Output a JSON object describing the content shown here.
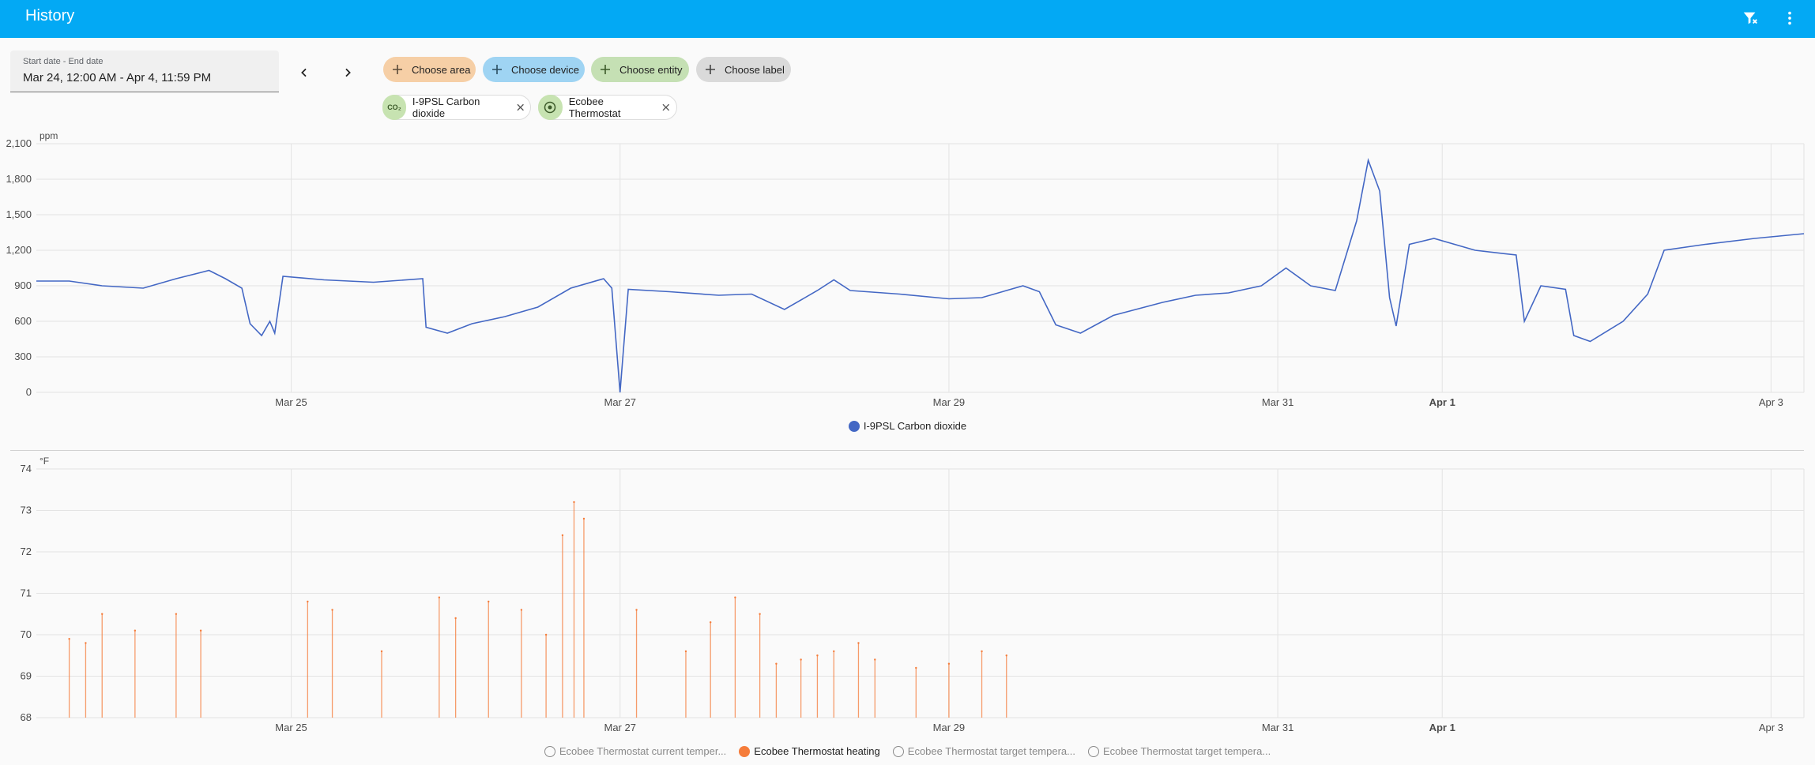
{
  "header": {
    "title": "History"
  },
  "date_range": {
    "label": "Start date - End date",
    "value": "Mar 24, 12:00 AM - Apr 4, 11:59 PM"
  },
  "filters": {
    "area": "Choose area",
    "device": "Choose device",
    "entity": "Choose entity",
    "label": "Choose label"
  },
  "selected": [
    {
      "icon": "CO₂",
      "name": "I-9PSL Carbon dioxide"
    },
    {
      "icon": "thermostat-icon",
      "name": "Ecobee Thermostat"
    }
  ],
  "colors": {
    "accent": "#03a9f4",
    "co2": "#4367c4",
    "heating": "#f57c3a"
  },
  "chart_data": [
    {
      "type": "line",
      "unit": "ppm",
      "ylim": [
        0,
        2100
      ],
      "yticks": [
        "2,100",
        "1,800",
        "1,500",
        "1,200",
        "900",
        "600",
        "300",
        "0"
      ],
      "xlim_days": [
        -0.55,
        10.2
      ],
      "xticks": [
        {
          "label": "Mar 25",
          "day": 1,
          "bold": false
        },
        {
          "label": "Mar 27",
          "day": 3,
          "bold": false
        },
        {
          "label": "Mar 29",
          "day": 5,
          "bold": false
        },
        {
          "label": "Mar 31",
          "day": 7,
          "bold": false
        },
        {
          "label": "Apr 1",
          "day": 8,
          "bold": true
        },
        {
          "label": "Apr 3",
          "day": 10,
          "bold": false
        }
      ],
      "legend": [
        "I-9PSL Carbon dioxide"
      ],
      "series": [
        {
          "name": "I-9PSL Carbon dioxide",
          "points": [
            [
              -0.55,
              940
            ],
            [
              -0.35,
              940
            ],
            [
              -0.15,
              900
            ],
            [
              0.1,
              880
            ],
            [
              0.3,
              960
            ],
            [
              0.5,
              1030
            ],
            [
              0.6,
              960
            ],
            [
              0.7,
              880
            ],
            [
              0.75,
              580
            ],
            [
              0.82,
              480
            ],
            [
              0.87,
              600
            ],
            [
              0.9,
              500
            ],
            [
              0.95,
              980
            ],
            [
              1.2,
              950
            ],
            [
              1.5,
              930
            ],
            [
              1.8,
              960
            ],
            [
              1.82,
              550
            ],
            [
              1.95,
              500
            ],
            [
              2.1,
              580
            ],
            [
              2.3,
              640
            ],
            [
              2.5,
              720
            ],
            [
              2.7,
              880
            ],
            [
              2.9,
              960
            ],
            [
              2.95,
              880
            ],
            [
              3.0,
              0
            ],
            [
              3.05,
              870
            ],
            [
              3.3,
              850
            ],
            [
              3.6,
              820
            ],
            [
              3.8,
              830
            ],
            [
              4.0,
              700
            ],
            [
              4.2,
              860
            ],
            [
              4.3,
              950
            ],
            [
              4.4,
              860
            ],
            [
              4.7,
              830
            ],
            [
              5.0,
              790
            ],
            [
              5.2,
              800
            ],
            [
              5.45,
              900
            ],
            [
              5.55,
              850
            ],
            [
              5.65,
              570
            ],
            [
              5.8,
              500
            ],
            [
              6.0,
              650
            ],
            [
              6.3,
              760
            ],
            [
              6.5,
              820
            ],
            [
              6.7,
              840
            ],
            [
              6.9,
              900
            ],
            [
              7.05,
              1050
            ],
            [
              7.2,
              900
            ],
            [
              7.35,
              860
            ],
            [
              7.48,
              1450
            ],
            [
              7.55,
              1960
            ],
            [
              7.62,
              1700
            ],
            [
              7.68,
              800
            ],
            [
              7.72,
              560
            ],
            [
              7.8,
              1250
            ],
            [
              7.95,
              1300
            ],
            [
              8.2,
              1200
            ],
            [
              8.45,
              1160
            ],
            [
              8.5,
              600
            ],
            [
              8.6,
              900
            ],
            [
              8.75,
              870
            ],
            [
              8.8,
              480
            ],
            [
              8.9,
              430
            ],
            [
              9.1,
              600
            ],
            [
              9.25,
              830
            ],
            [
              9.35,
              1200
            ],
            [
              9.6,
              1250
            ],
            [
              9.9,
              1300
            ],
            [
              10.2,
              1340
            ]
          ]
        }
      ]
    },
    {
      "type": "bar",
      "unit": "°F",
      "ylim": [
        68,
        74
      ],
      "yticks": [
        "74",
        "73",
        "72",
        "71",
        "70",
        "69",
        "68"
      ],
      "xlim_days": [
        -0.55,
        10.2
      ],
      "xticks": [
        {
          "label": "Mar 25",
          "day": 1,
          "bold": false
        },
        {
          "label": "Mar 27",
          "day": 3,
          "bold": false
        },
        {
          "label": "Mar 29",
          "day": 5,
          "bold": false
        },
        {
          "label": "Mar 31",
          "day": 7,
          "bold": false
        },
        {
          "label": "Apr 1",
          "day": 8,
          "bold": true
        },
        {
          "label": "Apr 3",
          "day": 10,
          "bold": false
        }
      ],
      "legend": [
        {
          "name": "Ecobee Thermostat current temper...",
          "enabled": false
        },
        {
          "name": "Ecobee Thermostat heating",
          "enabled": true
        },
        {
          "name": "Ecobee Thermostat target tempera...",
          "enabled": false
        },
        {
          "name": "Ecobee Thermostat target tempera...",
          "enabled": false
        }
      ],
      "series": [
        {
          "name": "Ecobee Thermostat heating",
          "points": [
            [
              -0.35,
              69.9
            ],
            [
              -0.25,
              69.8
            ],
            [
              -0.15,
              70.5
            ],
            [
              0.05,
              70.1
            ],
            [
              0.3,
              70.5
            ],
            [
              0.45,
              70.1
            ],
            [
              1.1,
              70.8
            ],
            [
              1.25,
              70.6
            ],
            [
              1.55,
              69.6
            ],
            [
              1.9,
              70.9
            ],
            [
              2.0,
              70.4
            ],
            [
              2.2,
              70.8
            ],
            [
              2.4,
              70.6
            ],
            [
              2.55,
              70.0
            ],
            [
              2.65,
              72.4
            ],
            [
              2.72,
              73.2
            ],
            [
              2.78,
              72.8
            ],
            [
              3.1,
              70.6
            ],
            [
              3.4,
              69.6
            ],
            [
              3.55,
              70.3
            ],
            [
              3.7,
              70.9
            ],
            [
              3.85,
              70.5
            ],
            [
              3.95,
              69.3
            ],
            [
              4.1,
              69.4
            ],
            [
              4.2,
              69.5
            ],
            [
              4.3,
              69.6
            ],
            [
              4.45,
              69.8
            ],
            [
              4.55,
              69.4
            ],
            [
              4.8,
              69.2
            ],
            [
              5.0,
              69.3
            ],
            [
              5.2,
              69.6
            ],
            [
              5.35,
              69.5
            ]
          ]
        }
      ]
    }
  ]
}
